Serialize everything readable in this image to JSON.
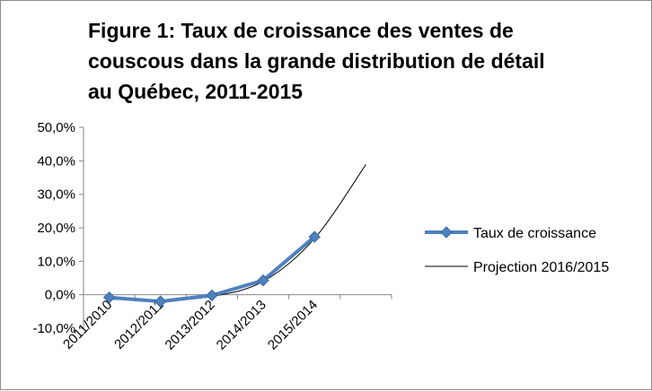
{
  "chart_data": {
    "type": "line",
    "title_lines": [
      "Figure 1: Taux de croissance des ventes de",
      "couscous dans la grande distribution de détail",
      "au Québec, 2011-2015"
    ],
    "categories": [
      "2011/2010",
      "2012/2011",
      "2013/2012",
      "2014/2013",
      "2015/2014"
    ],
    "y_ticks": [
      "-10,0%",
      "0,0%",
      "10,0%",
      "20,0%",
      "30,0%",
      "40,0%",
      "50,0%"
    ],
    "ylim": [
      -10,
      50
    ],
    "series": [
      {
        "name": "Taux de croissance",
        "values": [
          -0.8,
          -2.0,
          -0.2,
          4.3,
          17.3
        ],
        "color": "#4f81bd",
        "marker": "diamond"
      },
      {
        "name": "Projection 2016/2015",
        "color": "#000000",
        "trend_x": [
          1,
          2,
          3,
          4,
          5,
          6
        ],
        "trend_values": [
          -1.3,
          -1.6,
          -0.5,
          4.0,
          16.8,
          38.9
        ]
      }
    ],
    "legend_position": "right",
    "grid": false
  }
}
